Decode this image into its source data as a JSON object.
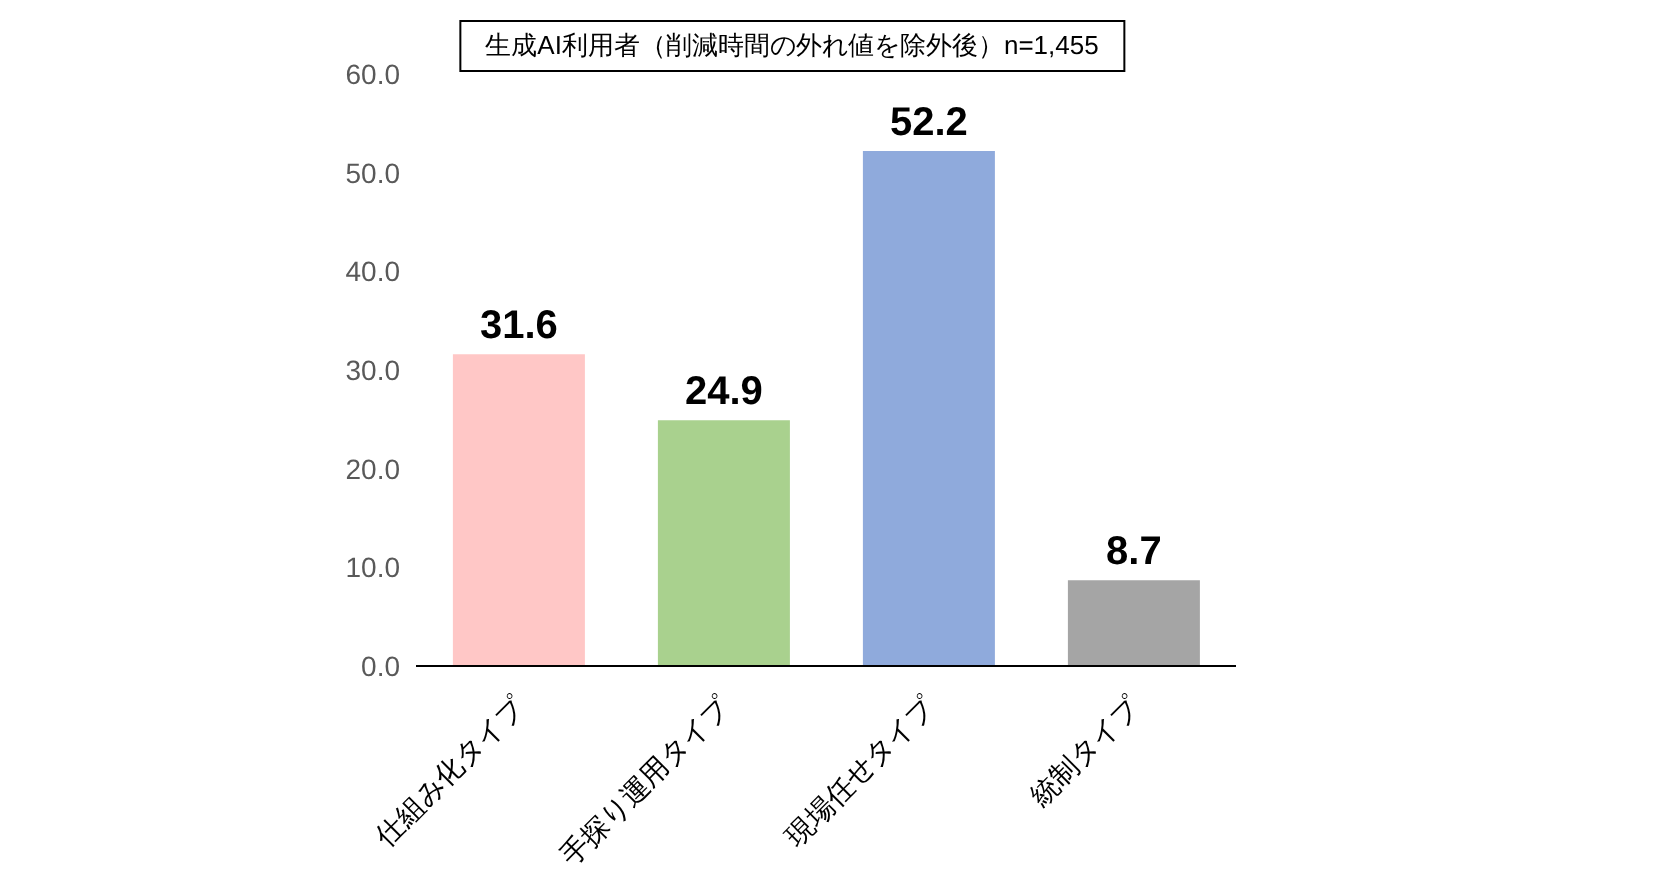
{
  "chart_data": {
    "type": "bar",
    "title": "生成AI利用者（削減時間の外れ値を除外後）n=1,455",
    "categories": [
      "仕組み化タイプ",
      "手探り運用タイプ",
      "現場任せタイプ",
      "統制タイプ"
    ],
    "values": [
      31.6,
      24.9,
      52.2,
      8.7
    ],
    "colors": [
      "#ffc7c6",
      "#a9d18e",
      "#8faadc",
      "#a5a5a5"
    ],
    "ylim": [
      0,
      60
    ],
    "yticks": [
      {
        "value": 0,
        "label": "0.0"
      },
      {
        "value": 10,
        "label": "10.0"
      },
      {
        "value": 20,
        "label": "20.0"
      },
      {
        "value": 30,
        "label": "30.0"
      },
      {
        "value": 40,
        "label": "40.0"
      },
      {
        "value": 50,
        "label": "50.0"
      },
      {
        "value": 60,
        "label": "60.0"
      }
    ],
    "grid": false,
    "data_labels": true
  }
}
